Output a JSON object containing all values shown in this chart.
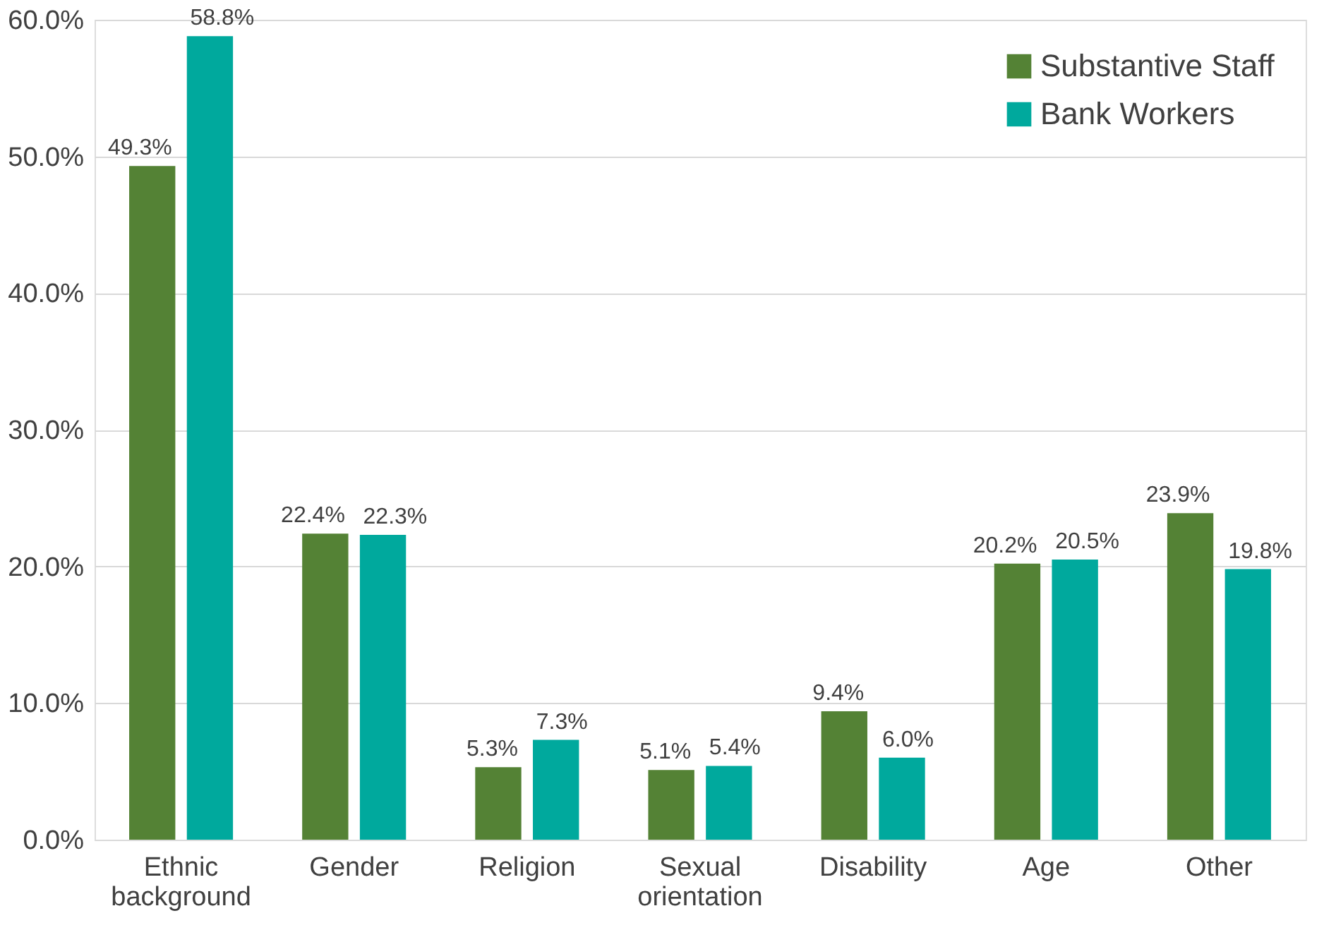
{
  "chart_data": {
    "type": "bar",
    "categories": [
      "Ethnic background",
      "Gender",
      "Religion",
      "Sexual orientation",
      "Disability",
      "Age",
      "Other"
    ],
    "series": [
      {
        "name": "Substantive Staff",
        "color": "#548235",
        "values": [
          49.3,
          22.4,
          5.3,
          5.1,
          9.4,
          20.2,
          23.9
        ],
        "value_labels": [
          "49.3%",
          "22.4%",
          "5.3%",
          "5.1%",
          "9.4%",
          "20.2%",
          "23.9%"
        ]
      },
      {
        "name": "Bank Workers",
        "color": "#00a99d",
        "values": [
          58.8,
          22.3,
          7.3,
          5.4,
          6.0,
          20.5,
          19.8
        ],
        "value_labels": [
          "58.8%",
          "22.3%",
          "7.3%",
          "5.4%",
          "6.0%",
          "20.5%",
          "19.8%"
        ]
      }
    ],
    "ylim": [
      0,
      60
    ],
    "yticks": [
      {
        "value": 0,
        "label": "0.0%"
      },
      {
        "value": 10,
        "label": "10.0%"
      },
      {
        "value": 20,
        "label": "20.0%"
      },
      {
        "value": 30,
        "label": "30.0%"
      },
      {
        "value": 40,
        "label": "40.0%"
      },
      {
        "value": 50,
        "label": "50.0%"
      },
      {
        "value": 60,
        "label": "60.0%"
      }
    ],
    "grid": "y",
    "legend": "top right"
  }
}
